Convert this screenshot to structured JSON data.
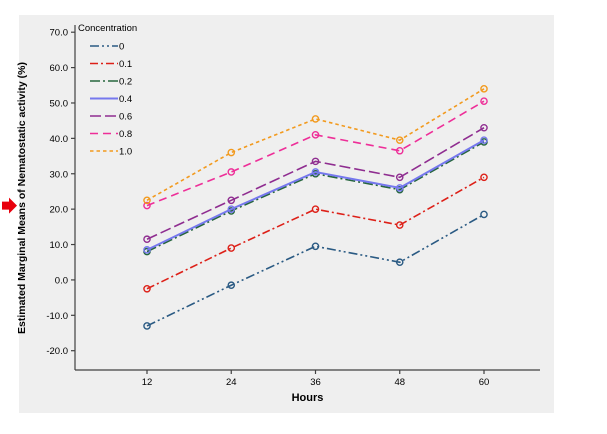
{
  "chart_data": {
    "type": "line",
    "title": "",
    "xlabel": "Hours",
    "ylabel": "Estimated Marginal Means of Nematostatic activity (%)",
    "legend_title": "Concentration",
    "legend_position": "top-left-inside",
    "grid": false,
    "x": [
      12,
      24,
      36,
      48,
      60
    ],
    "x_tick_labels": [
      "12",
      "24",
      "36",
      "48",
      "60"
    ],
    "y_ticks": [
      70,
      60,
      50,
      40,
      30,
      20,
      10,
      0,
      -10,
      -20
    ],
    "y_tick_labels": [
      "70.0",
      "60.0",
      "50.0",
      "40.0",
      "30.0",
      "20.0",
      "10.0",
      "0.0",
      "-10.0",
      "-20.0"
    ],
    "ylim": [
      -20,
      70
    ],
    "series": [
      {
        "name": "0",
        "color": "#2a5a83",
        "dash": "9 3 2 3 2 3",
        "marker": "circle",
        "values": [
          -13,
          -1.5,
          9.5,
          5,
          18.5
        ]
      },
      {
        "name": "0.1",
        "color": "#dd2018",
        "dash": "8 3 2 3",
        "marker": "circle",
        "values": [
          -2.5,
          9,
          20,
          15.5,
          29
        ]
      },
      {
        "name": "0.2",
        "color": "#26663d",
        "dash": "10 3 2 3",
        "marker": "circle",
        "values": [
          8,
          19.5,
          30,
          25.5,
          39
        ]
      },
      {
        "name": "0.4",
        "color": "#7678ee",
        "dash": "",
        "marker": "circle",
        "values": [
          8.5,
          20,
          30.5,
          26,
          39.5
        ]
      },
      {
        "name": "0.6",
        "color": "#8f2d90",
        "dash": "11 4",
        "marker": "circle",
        "values": [
          11.5,
          22.5,
          33.5,
          29,
          43
        ]
      },
      {
        "name": "0.8",
        "color": "#ee2e98",
        "dash": "8 5",
        "marker": "circle",
        "values": [
          21,
          30.5,
          41,
          36.5,
          50.5
        ]
      },
      {
        "name": "1.0",
        "color": "#f29a1e",
        "dash": "3.5 3",
        "marker": "circle",
        "values": [
          22.5,
          36,
          45.5,
          39.5,
          54
        ]
      }
    ],
    "annotation": {
      "type": "arrow-right",
      "color": "#e8000d",
      "points_at_y_value": 21,
      "position": "left-margin"
    }
  },
  "panel": {
    "bg": "#efefef",
    "axis_color": "#404040"
  }
}
